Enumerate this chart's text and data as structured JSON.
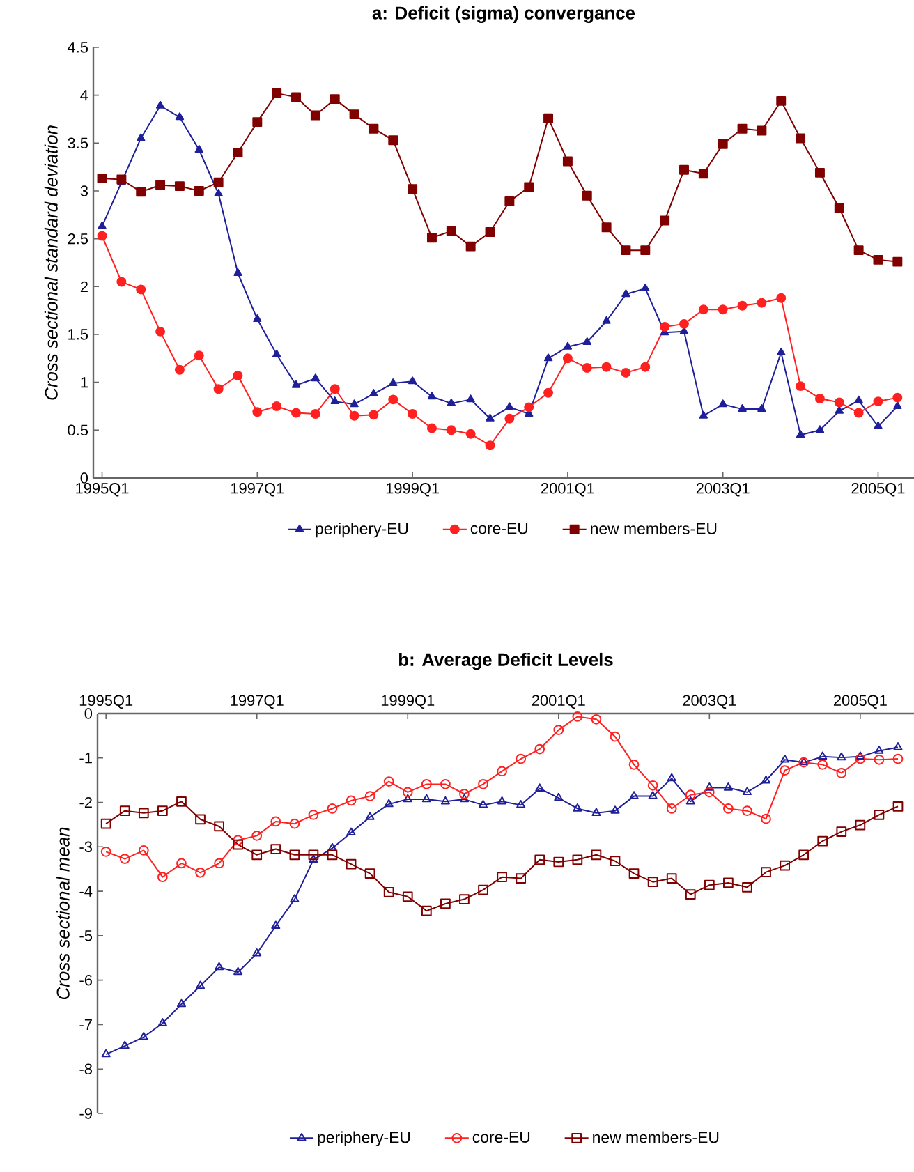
{
  "chart_data": [
    {
      "type": "line",
      "title": "a: Deficit (sigma) convergance",
      "ylabel": "Cross sectional standard deviation",
      "categories": [
        "1995Q1",
        null,
        null,
        null,
        null,
        null,
        null,
        null,
        "1997Q1",
        null,
        null,
        null,
        null,
        null,
        null,
        null,
        "1999Q1",
        null,
        null,
        null,
        null,
        null,
        null,
        null,
        "2001Q1",
        null,
        null,
        null,
        null,
        null,
        null,
        null,
        "2003Q1",
        null,
        null,
        null,
        null,
        null,
        null,
        null,
        "2005Q1",
        null
      ],
      "series": [
        {
          "name": "periphery-EU",
          "color": "#1f1f99",
          "marker": "triangle",
          "values": [
            2.63,
            3.09,
            3.55,
            3.89,
            3.77,
            3.43,
            2.97,
            2.14,
            1.66,
            1.29,
            0.97,
            1.04,
            0.8,
            0.77,
            0.88,
            0.99,
            1.01,
            0.85,
            0.78,
            0.82,
            0.62,
            0.74,
            0.67,
            1.25,
            1.37,
            1.42,
            1.64,
            1.92,
            1.98,
            1.52,
            1.53,
            0.65,
            0.77,
            0.72,
            0.72,
            1.31,
            0.45,
            0.5,
            0.7,
            0.81,
            0.54,
            0.75
          ]
        },
        {
          "name": "core-EU",
          "color": "#ff2020",
          "marker": "circle",
          "values": [
            2.53,
            2.05,
            1.97,
            1.53,
            1.13,
            1.28,
            0.93,
            1.07,
            0.69,
            0.75,
            0.68,
            0.67,
            0.93,
            0.65,
            0.66,
            0.82,
            0.67,
            0.52,
            0.5,
            0.46,
            0.34,
            0.62,
            0.74,
            0.89,
            1.25,
            1.15,
            1.16,
            1.1,
            1.16,
            1.58,
            1.61,
            1.76,
            1.76,
            1.8,
            1.83,
            1.88,
            0.96,
            0.83,
            0.79,
            0.68,
            0.8,
            0.84
          ]
        },
        {
          "name": "new members-EU",
          "color": "#800000",
          "marker": "square",
          "values": [
            3.13,
            3.12,
            2.99,
            3.06,
            3.05,
            3.0,
            3.09,
            3.4,
            3.72,
            4.02,
            3.98,
            3.79,
            3.96,
            3.8,
            3.65,
            3.53,
            3.02,
            2.51,
            2.58,
            2.42,
            2.57,
            2.89,
            3.04,
            3.76,
            3.31,
            2.95,
            2.62,
            2.38,
            2.38,
            2.69,
            3.22,
            3.18,
            3.49,
            3.65,
            3.63,
            3.94,
            3.55,
            3.19,
            2.82,
            2.38,
            2.28,
            2.26
          ]
        }
      ],
      "ylim": [
        0,
        4.5
      ],
      "yticks": [
        0,
        0.5,
        1,
        1.5,
        2,
        2.5,
        3,
        3.5,
        4,
        4.5
      ],
      "grid": false,
      "legend": "bottom",
      "line_style": "solid"
    },
    {
      "type": "line",
      "title": "b: Average Deficit Levels",
      "ylabel": "Cross sectional mean",
      "categories": [
        "1995Q1",
        null,
        null,
        null,
        null,
        null,
        null,
        null,
        "1997Q1",
        null,
        null,
        null,
        null,
        null,
        null,
        null,
        "1999Q1",
        null,
        null,
        null,
        null,
        null,
        null,
        null,
        "2001Q1",
        null,
        null,
        null,
        null,
        null,
        null,
        null,
        "2003Q1",
        null,
        null,
        null,
        null,
        null,
        null,
        null,
        "2005Q1",
        null,
        null
      ],
      "series": [
        {
          "name": "periphery-EU",
          "color": "#1f1f99",
          "marker": "triangle",
          "values": [
            -7.67,
            -7.48,
            -7.28,
            -6.97,
            -6.54,
            -6.13,
            -5.71,
            -5.82,
            -5.4,
            -4.78,
            -4.18,
            -3.29,
            -3.03,
            -2.68,
            -2.33,
            -2.04,
            -1.93,
            -1.93,
            -1.98,
            -1.93,
            -2.06,
            -1.98,
            -2.06,
            -1.69,
            -1.9,
            -2.14,
            -2.24,
            -2.19,
            -1.86,
            -1.86,
            -1.46,
            -1.98,
            -1.67,
            -1.67,
            -1.77,
            -1.51,
            -1.04,
            -1.1,
            -0.97,
            -0.99,
            -0.97,
            -0.84,
            -0.76
          ]
        },
        {
          "name": "core-EU",
          "color": "#ff2020",
          "marker": "circle",
          "values": [
            -3.11,
            -3.27,
            -3.08,
            -3.68,
            -3.37,
            -3.58,
            -3.37,
            -2.85,
            -2.75,
            -2.43,
            -2.48,
            -2.28,
            -2.14,
            -1.96,
            -1.86,
            -1.53,
            -1.77,
            -1.59,
            -1.59,
            -1.81,
            -1.59,
            -1.3,
            -1.02,
            -0.8,
            -0.37,
            -0.07,
            -0.13,
            -0.52,
            -1.15,
            -1.62,
            -2.14,
            -1.83,
            -1.77,
            -2.14,
            -2.19,
            -2.37,
            -1.28,
            -1.1,
            -1.15,
            -1.34,
            -1.02,
            -1.04,
            -1.02
          ]
        },
        {
          "name": "new members-EU",
          "color": "#800000",
          "marker": "square",
          "values": [
            -2.48,
            -2.19,
            -2.24,
            -2.19,
            -1.98,
            -2.38,
            -2.54,
            -2.95,
            -3.18,
            -3.05,
            -3.18,
            -3.18,
            -3.18,
            -3.39,
            -3.6,
            -4.02,
            -4.12,
            -4.44,
            -4.28,
            -4.18,
            -3.97,
            -3.68,
            -3.71,
            -3.29,
            -3.34,
            -3.29,
            -3.18,
            -3.32,
            -3.6,
            -3.79,
            -3.71,
            -4.07,
            -3.86,
            -3.81,
            -3.91,
            -3.57,
            -3.42,
            -3.18,
            -2.87,
            -2.66,
            -2.51,
            -2.28,
            -2.09
          ]
        }
      ],
      "ylim": [
        -9,
        0
      ],
      "yticks": [
        0,
        -1,
        -2,
        -3,
        -4,
        -5,
        -6,
        -7,
        -8,
        -9
      ],
      "grid": false,
      "legend": "bottom",
      "line_style": "solid"
    }
  ]
}
